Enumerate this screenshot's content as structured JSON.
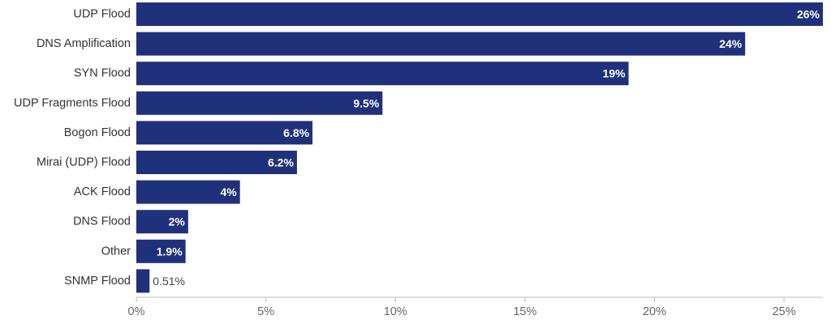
{
  "chart_data": {
    "type": "bar",
    "orientation": "horizontal",
    "title": "",
    "xlabel": "",
    "ylabel": "",
    "categories": [
      "UDP Flood",
      "DNS Amplification",
      "SYN Flood",
      "UDP Fragments Flood",
      "Bogon Flood",
      "Mirai (UDP) Flood",
      "ACK Flood",
      "DNS Flood",
      "Other",
      "SNMP Flood"
    ],
    "values": [
      26.5,
      23.5,
      19.0,
      9.5,
      6.8,
      6.2,
      4.0,
      2.0,
      1.9,
      0.51
    ],
    "data_labels": [
      "26%",
      "24%",
      "19%",
      "9.5%",
      "6.8%",
      "6.2%",
      "4%",
      "2%",
      "1.9%",
      "0.51%"
    ],
    "xlim": [
      0,
      26.5
    ],
    "x_ticks": [
      0,
      5,
      10,
      15,
      20,
      25
    ],
    "x_tick_labels": [
      "0%",
      "5%",
      "10%",
      "15%",
      "20%",
      "25%"
    ],
    "grid": false,
    "legend": "none",
    "bar_color": "#20317c"
  }
}
